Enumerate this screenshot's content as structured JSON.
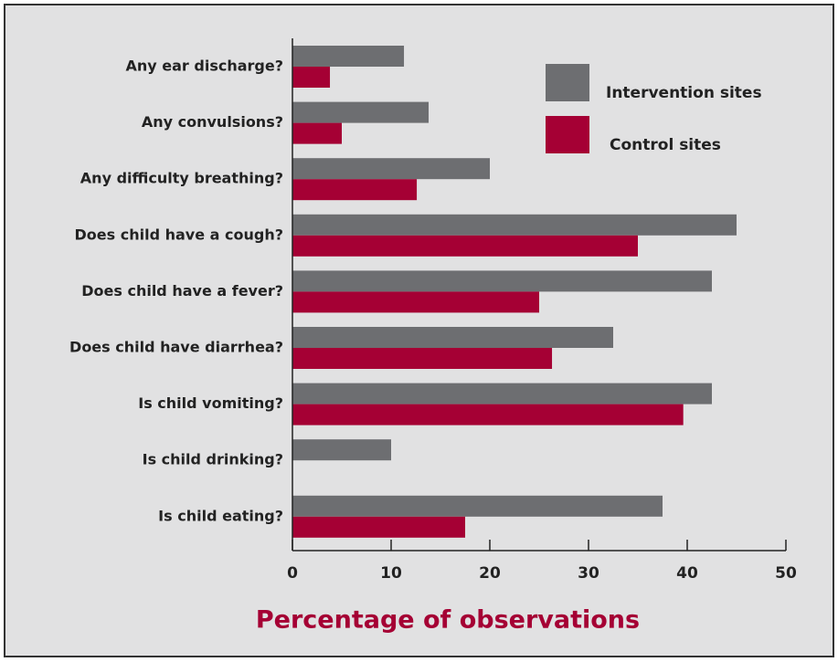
{
  "chart_data": {
    "type": "bar",
    "categories": [
      "Any ear discharge?",
      "Any convulsions?",
      "Any difficulty breathing?",
      "Does child have a cough?",
      "Does child have a fever?",
      "Does child have diarrhea?",
      "Is child vomiting?",
      "Is child drinking?",
      "Is child eating?"
    ],
    "series": [
      {
        "name": "Intervention sites",
        "color": "#6d6e71",
        "values": [
          11.3,
          13.8,
          20,
          45,
          42.5,
          32.5,
          42.5,
          10,
          37.5
        ]
      },
      {
        "name": "Control sites",
        "color": "#a50034",
        "values": [
          3.8,
          5,
          12.6,
          35,
          25,
          26.3,
          39.6,
          0,
          17.5
        ]
      }
    ],
    "xlabel": "Percentage of observations",
    "xlim": [
      0,
      50
    ],
    "xticks": [
      0,
      10,
      20,
      30,
      40,
      50
    ],
    "orientation": "horizontal",
    "grid": false,
    "legend": "upper right"
  }
}
